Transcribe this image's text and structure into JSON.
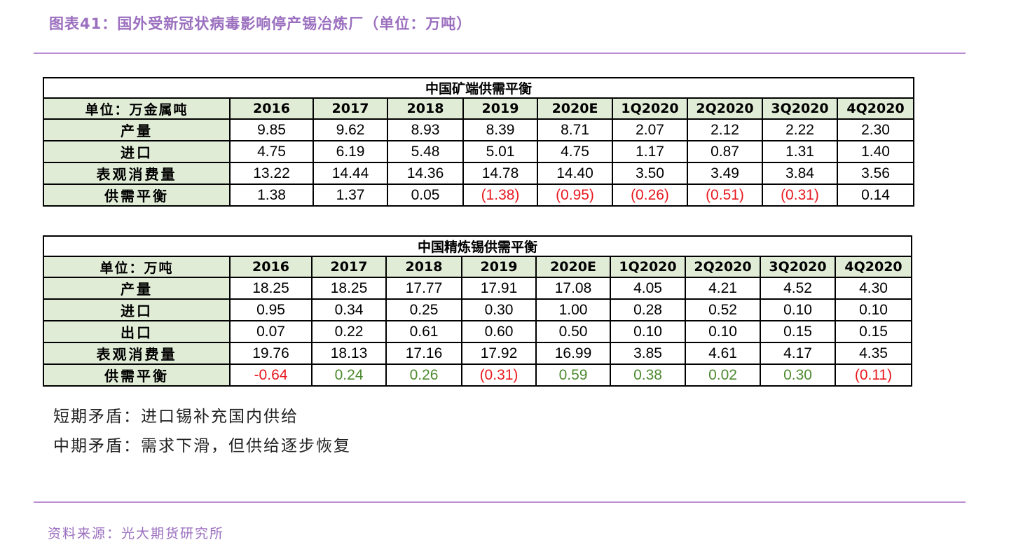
{
  "figure_title": "图表41：国外受新冠状病毒影响停产锡冶炼厂（单位：万吨）",
  "table1": {
    "caption": "中国矿端供需平衡",
    "unit_label": "单位：万金属吨",
    "headers": [
      "2016",
      "2017",
      "2018",
      "2019",
      "2020E",
      "1Q2020",
      "2Q2020",
      "3Q2020",
      "4Q2020"
    ],
    "rows": [
      {
        "label": "产量",
        "cells": [
          {
            "v": "9.85"
          },
          {
            "v": "9.62"
          },
          {
            "v": "8.93"
          },
          {
            "v": "8.39"
          },
          {
            "v": "8.71"
          },
          {
            "v": "2.07"
          },
          {
            "v": "2.12"
          },
          {
            "v": "2.22"
          },
          {
            "v": "2.30"
          }
        ]
      },
      {
        "label": "进口",
        "cells": [
          {
            "v": "4.75"
          },
          {
            "v": "6.19"
          },
          {
            "v": "5.48"
          },
          {
            "v": "5.01"
          },
          {
            "v": "4.75"
          },
          {
            "v": "1.17"
          },
          {
            "v": "0.87"
          },
          {
            "v": "1.31"
          },
          {
            "v": "1.40"
          }
        ]
      },
      {
        "label": "表观消费量",
        "cells": [
          {
            "v": "13.22"
          },
          {
            "v": "14.44"
          },
          {
            "v": "14.36"
          },
          {
            "v": "14.78"
          },
          {
            "v": "14.40"
          },
          {
            "v": "3.50"
          },
          {
            "v": "3.49"
          },
          {
            "v": "3.84"
          },
          {
            "v": "3.56"
          }
        ]
      },
      {
        "label": "供需平衡",
        "cells": [
          {
            "v": "1.38"
          },
          {
            "v": "1.37"
          },
          {
            "v": "0.05"
          },
          {
            "v": "(1.38)",
            "c": "neg"
          },
          {
            "v": "(0.95)",
            "c": "neg"
          },
          {
            "v": "(0.26)",
            "c": "neg"
          },
          {
            "v": "(0.51)",
            "c": "neg"
          },
          {
            "v": "(0.31)",
            "c": "neg"
          },
          {
            "v": "0.14"
          }
        ]
      }
    ]
  },
  "table2": {
    "caption": "中国精炼锡供需平衡",
    "unit_label": "单位：万吨",
    "headers": [
      "2016",
      "2017",
      "2018",
      "2019",
      "2020E",
      "1Q2020",
      "2Q2020",
      "3Q2020",
      "4Q2020"
    ],
    "rows": [
      {
        "label": "产量",
        "cells": [
          {
            "v": "18.25"
          },
          {
            "v": "18.25"
          },
          {
            "v": "17.77"
          },
          {
            "v": "17.91"
          },
          {
            "v": "17.08"
          },
          {
            "v": "4.05"
          },
          {
            "v": "4.21"
          },
          {
            "v": "4.52"
          },
          {
            "v": "4.30"
          }
        ]
      },
      {
        "label": "进口",
        "cells": [
          {
            "v": "0.95"
          },
          {
            "v": "0.34"
          },
          {
            "v": "0.25"
          },
          {
            "v": "0.30"
          },
          {
            "v": "1.00"
          },
          {
            "v": "0.28"
          },
          {
            "v": "0.52"
          },
          {
            "v": "0.10"
          },
          {
            "v": "0.10"
          }
        ]
      },
      {
        "label": "出口",
        "cells": [
          {
            "v": "0.07"
          },
          {
            "v": "0.22"
          },
          {
            "v": "0.61"
          },
          {
            "v": "0.60"
          },
          {
            "v": "0.50"
          },
          {
            "v": "0.10"
          },
          {
            "v": "0.10"
          },
          {
            "v": "0.15"
          },
          {
            "v": "0.15"
          }
        ]
      },
      {
        "label": "表观消费量",
        "cells": [
          {
            "v": "19.76"
          },
          {
            "v": "18.13"
          },
          {
            "v": "17.16"
          },
          {
            "v": "17.92"
          },
          {
            "v": "16.99"
          },
          {
            "v": "3.85"
          },
          {
            "v": "4.61"
          },
          {
            "v": "4.17"
          },
          {
            "v": "4.35"
          }
        ]
      },
      {
        "label": "供需平衡",
        "cells": [
          {
            "v": "-0.64",
            "c": "neg"
          },
          {
            "v": "0.24",
            "c": "pos"
          },
          {
            "v": "0.26",
            "c": "pos"
          },
          {
            "v": "(0.31)",
            "c": "neg"
          },
          {
            "v": "0.59",
            "c": "pos"
          },
          {
            "v": "0.38",
            "c": "pos"
          },
          {
            "v": "0.02",
            "c": "pos"
          },
          {
            "v": "0.30",
            "c": "pos"
          },
          {
            "v": "(0.11)",
            "c": "neg"
          }
        ]
      }
    ]
  },
  "notes": {
    "short_term": "短期矛盾：进口锡补充国内供给",
    "mid_term": "中期矛盾：需求下滑，但供给逐步恢复"
  },
  "source": "资料来源：光大期货研究所",
  "colors": {
    "accent": "#9b6fbf",
    "rule": "#b98cd4",
    "header_fill": "#e1ecd7",
    "negative": "#e8191f",
    "positive": "#4d8a2f"
  }
}
